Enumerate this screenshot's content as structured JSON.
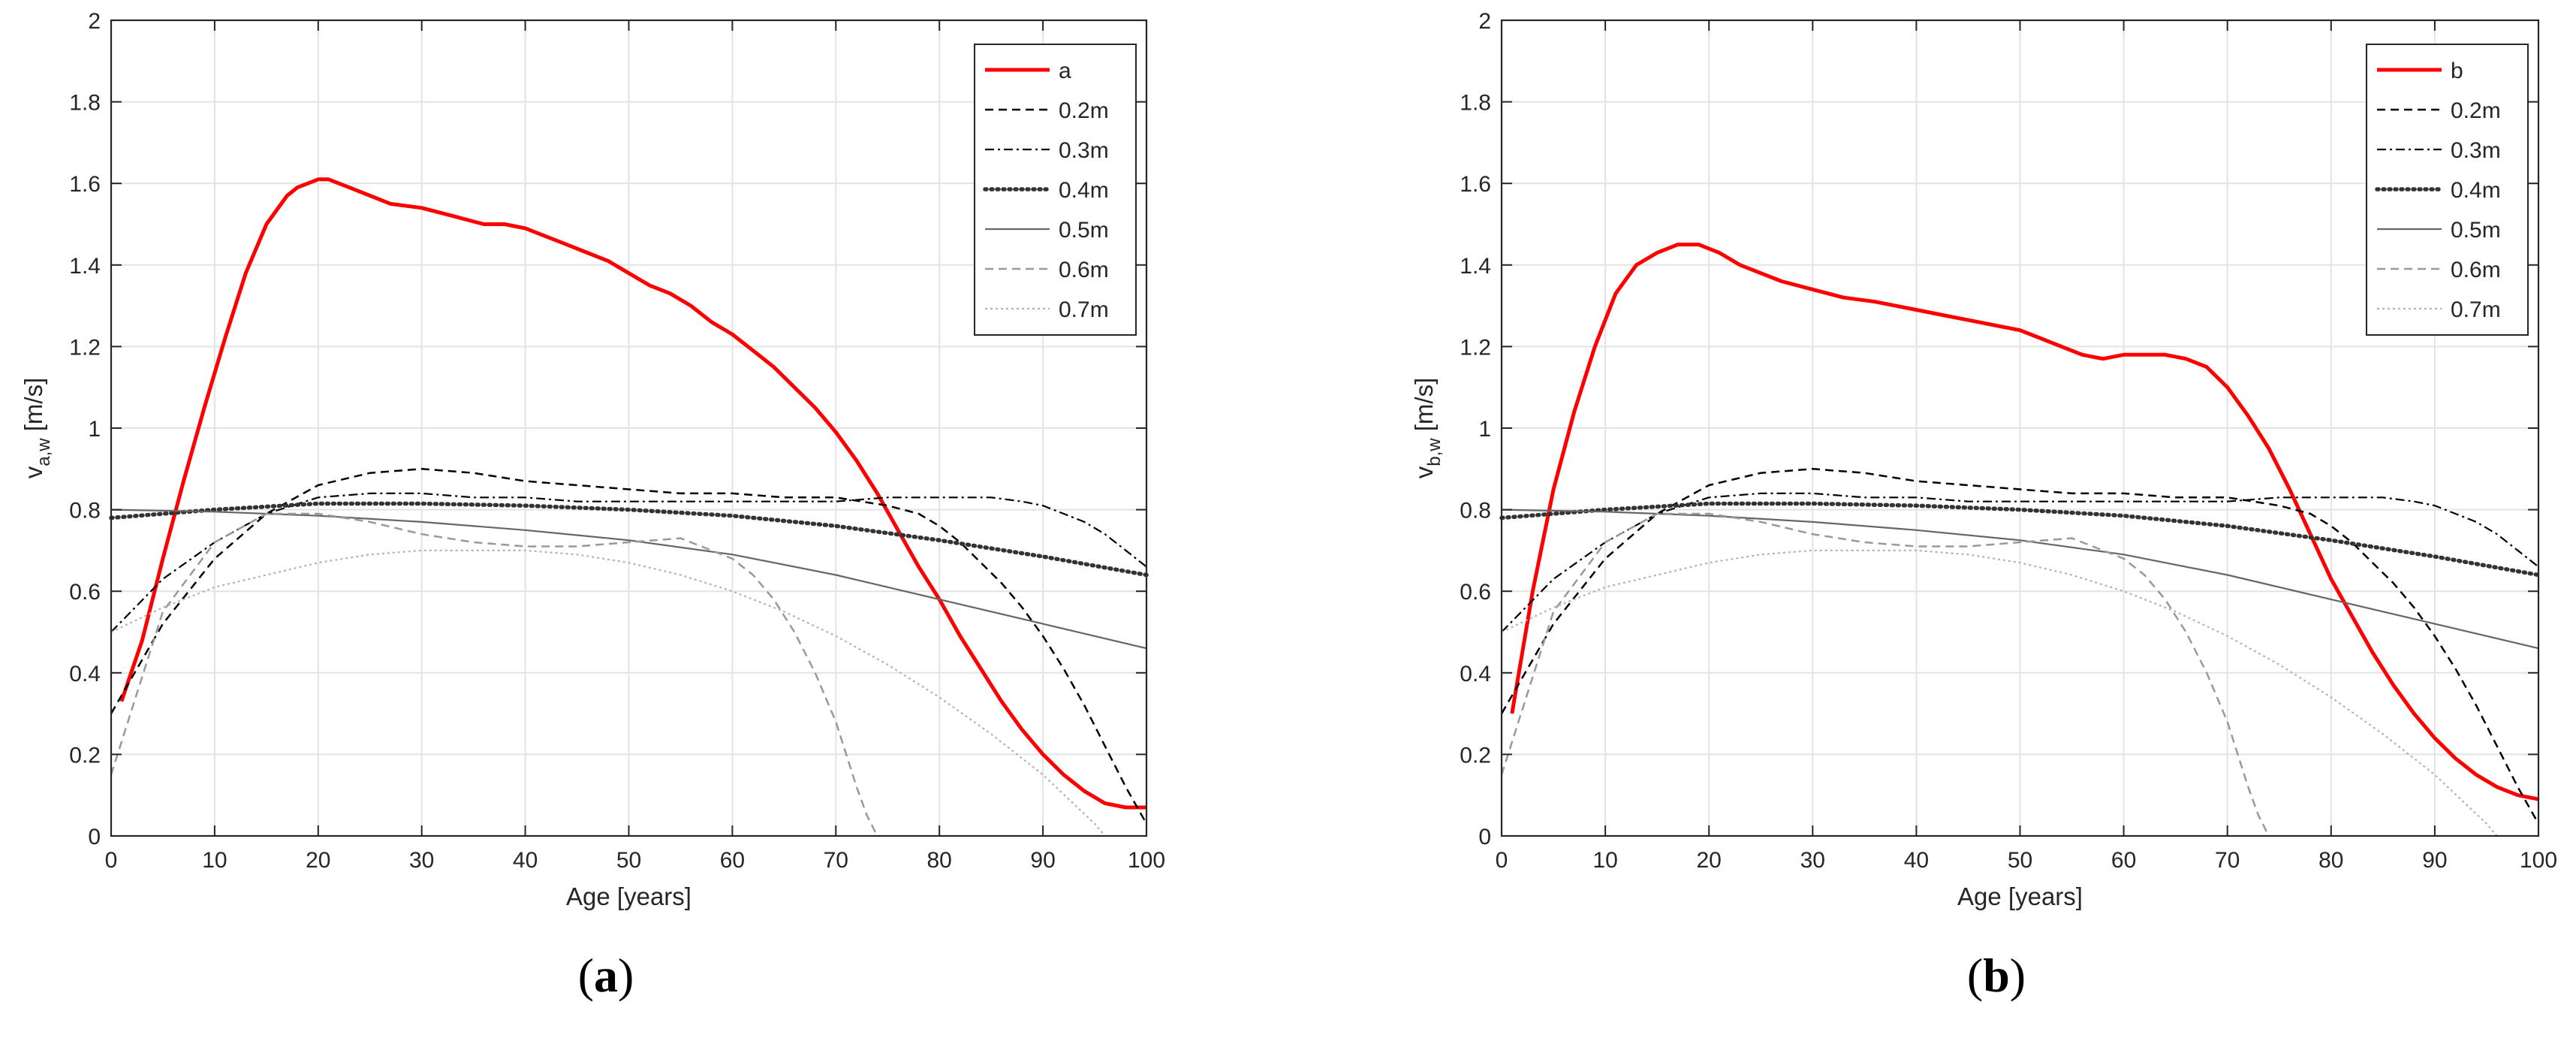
{
  "chart_data": [
    {
      "type": "line",
      "panel_label": "a",
      "xlabel": "Age [years]",
      "ylabel_main": "v",
      "ylabel_sub": "a,w",
      "ylabel_unit": " [m/s]",
      "xlim": [
        0,
        100
      ],
      "ylim": [
        0,
        2
      ],
      "xticks": [
        0,
        10,
        20,
        30,
        40,
        50,
        60,
        70,
        80,
        90,
        100
      ],
      "yticks": [
        0,
        0.2,
        0.4,
        0.6,
        0.8,
        1,
        1.2,
        1.4,
        1.6,
        1.8,
        2
      ],
      "ytick_labels": [
        "0",
        "0.2",
        "0.4",
        "0.6",
        "0.8",
        "1",
        "1.2",
        "1.4",
        "1.6",
        "1.8",
        "2"
      ],
      "grid": true,
      "legend_position": "top-right",
      "series": [
        {
          "name": "a",
          "color": "#ff0000",
          "style": "solid-thick",
          "x": [
            1,
            3,
            5,
            7,
            9,
            11,
            13,
            15,
            17,
            18,
            19,
            20,
            21,
            22,
            23,
            25,
            27,
            30,
            33,
            36,
            38,
            40,
            42,
            44,
            46,
            48,
            50,
            52,
            54,
            56,
            58,
            60,
            62,
            64,
            66,
            68,
            70,
            72,
            74,
            76,
            78,
            80,
            82,
            84,
            86,
            88,
            90,
            92,
            94,
            96,
            98,
            99,
            100
          ],
          "y": [
            0.33,
            0.48,
            0.68,
            0.87,
            1.05,
            1.22,
            1.38,
            1.5,
            1.57,
            1.59,
            1.6,
            1.61,
            1.61,
            1.6,
            1.59,
            1.57,
            1.55,
            1.54,
            1.52,
            1.5,
            1.5,
            1.49,
            1.47,
            1.45,
            1.43,
            1.41,
            1.38,
            1.35,
            1.33,
            1.3,
            1.26,
            1.23,
            1.19,
            1.15,
            1.1,
            1.05,
            0.99,
            0.92,
            0.84,
            0.75,
            0.66,
            0.58,
            0.49,
            0.41,
            0.33,
            0.26,
            0.2,
            0.15,
            0.11,
            0.08,
            0.07,
            0.07,
            0.07
          ]
        },
        {
          "name": "0.2m",
          "color": "#000000",
          "style": "dashed",
          "x": [
            0,
            5,
            10,
            15,
            20,
            25,
            30,
            35,
            40,
            45,
            50,
            55,
            60,
            65,
            70,
            75,
            78,
            80,
            82,
            84,
            86,
            88,
            90,
            92,
            94,
            96,
            98,
            100
          ],
          "y": [
            0.3,
            0.52,
            0.68,
            0.79,
            0.86,
            0.89,
            0.9,
            0.89,
            0.87,
            0.86,
            0.85,
            0.84,
            0.84,
            0.83,
            0.83,
            0.81,
            0.79,
            0.76,
            0.72,
            0.67,
            0.62,
            0.56,
            0.49,
            0.41,
            0.32,
            0.22,
            0.12,
            0.03
          ]
        },
        {
          "name": "0.3m",
          "color": "#000000",
          "style": "dashdot",
          "x": [
            0,
            5,
            10,
            15,
            20,
            25,
            30,
            35,
            40,
            45,
            50,
            55,
            60,
            65,
            70,
            75,
            80,
            85,
            88,
            90,
            92,
            94,
            96,
            98,
            100
          ],
          "y": [
            0.5,
            0.63,
            0.72,
            0.79,
            0.83,
            0.84,
            0.84,
            0.83,
            0.83,
            0.82,
            0.82,
            0.82,
            0.82,
            0.82,
            0.82,
            0.83,
            0.83,
            0.83,
            0.82,
            0.81,
            0.79,
            0.77,
            0.74,
            0.7,
            0.66
          ]
        },
        {
          "name": "0.4m",
          "color": "#333333",
          "style": "dotted-thick",
          "x": [
            0,
            10,
            20,
            30,
            40,
            50,
            60,
            70,
            80,
            90,
            100
          ],
          "y": [
            0.78,
            0.8,
            0.815,
            0.815,
            0.81,
            0.8,
            0.785,
            0.76,
            0.725,
            0.685,
            0.64
          ]
        },
        {
          "name": "0.5m",
          "color": "#666666",
          "style": "solid-thin",
          "x": [
            0,
            10,
            15,
            20,
            30,
            40,
            50,
            60,
            70,
            80,
            90,
            100
          ],
          "y": [
            0.8,
            0.795,
            0.79,
            0.785,
            0.77,
            0.75,
            0.725,
            0.69,
            0.64,
            0.58,
            0.52,
            0.46
          ]
        },
        {
          "name": "0.6m",
          "color": "#999999",
          "style": "dashed",
          "x": [
            0,
            5,
            10,
            15,
            20,
            25,
            30,
            35,
            40,
            45,
            50,
            55,
            60,
            62,
            64,
            66,
            68,
            70,
            71,
            72,
            73,
            74
          ],
          "y": [
            0.15,
            0.55,
            0.72,
            0.79,
            0.79,
            0.77,
            0.74,
            0.72,
            0.71,
            0.71,
            0.72,
            0.73,
            0.68,
            0.64,
            0.58,
            0.5,
            0.4,
            0.28,
            0.2,
            0.12,
            0.05,
            0.0
          ]
        },
        {
          "name": "0.7m",
          "color": "#b3b3b3",
          "style": "dotted-thin",
          "x": [
            0,
            5,
            10,
            15,
            20,
            25,
            30,
            35,
            40,
            45,
            50,
            55,
            60,
            65,
            70,
            75,
            80,
            85,
            90,
            95,
            96
          ],
          "y": [
            0.5,
            0.56,
            0.61,
            0.64,
            0.67,
            0.69,
            0.7,
            0.7,
            0.7,
            0.69,
            0.67,
            0.64,
            0.6,
            0.55,
            0.49,
            0.42,
            0.34,
            0.25,
            0.15,
            0.03,
            0.0
          ]
        }
      ]
    },
    {
      "type": "line",
      "panel_label": "b",
      "xlabel": "Age [years]",
      "ylabel_main": "v",
      "ylabel_sub": "b,w",
      "ylabel_unit": " [m/s]",
      "xlim": [
        0,
        100
      ],
      "ylim": [
        0,
        2
      ],
      "xticks": [
        0,
        10,
        20,
        30,
        40,
        50,
        60,
        70,
        80,
        90,
        100
      ],
      "yticks": [
        0,
        0.2,
        0.4,
        0.6,
        0.8,
        1,
        1.2,
        1.4,
        1.6,
        1.8,
        2
      ],
      "ytick_labels": [
        "0",
        "0.2",
        "0.4",
        "0.6",
        "0.8",
        "1",
        "1.2",
        "1.4",
        "1.6",
        "1.8",
        "2"
      ],
      "grid": true,
      "legend_position": "top-right",
      "series": [
        {
          "name": "b",
          "color": "#ff0000",
          "style": "solid-thick",
          "x": [
            1,
            3,
            5,
            7,
            9,
            11,
            13,
            15,
            17,
            18,
            19,
            20,
            21,
            23,
            25,
            27,
            30,
            33,
            36,
            38,
            40,
            42,
            44,
            46,
            48,
            50,
            52,
            54,
            56,
            58,
            60,
            62,
            64,
            66,
            68,
            70,
            72,
            74,
            76,
            78,
            80,
            82,
            84,
            86,
            88,
            90,
            92,
            94,
            96,
            98,
            100
          ],
          "y": [
            0.3,
            0.6,
            0.85,
            1.04,
            1.2,
            1.33,
            1.4,
            1.43,
            1.45,
            1.45,
            1.45,
            1.44,
            1.43,
            1.4,
            1.38,
            1.36,
            1.34,
            1.32,
            1.31,
            1.3,
            1.29,
            1.28,
            1.27,
            1.26,
            1.25,
            1.24,
            1.22,
            1.2,
            1.18,
            1.17,
            1.18,
            1.18,
            1.18,
            1.17,
            1.15,
            1.1,
            1.03,
            0.95,
            0.85,
            0.74,
            0.63,
            0.54,
            0.45,
            0.37,
            0.3,
            0.24,
            0.19,
            0.15,
            0.12,
            0.1,
            0.09
          ]
        },
        {
          "name": "0.2m",
          "color": "#000000",
          "style": "dashed",
          "x": [
            0,
            5,
            10,
            15,
            20,
            25,
            30,
            35,
            40,
            45,
            50,
            55,
            60,
            65,
            70,
            75,
            78,
            80,
            82,
            84,
            86,
            88,
            90,
            92,
            94,
            96,
            98,
            100
          ],
          "y": [
            0.3,
            0.52,
            0.68,
            0.79,
            0.86,
            0.89,
            0.9,
            0.89,
            0.87,
            0.86,
            0.85,
            0.84,
            0.84,
            0.83,
            0.83,
            0.81,
            0.79,
            0.76,
            0.72,
            0.67,
            0.62,
            0.56,
            0.49,
            0.41,
            0.32,
            0.22,
            0.12,
            0.03
          ]
        },
        {
          "name": "0.3m",
          "color": "#000000",
          "style": "dashdot",
          "x": [
            0,
            5,
            10,
            15,
            20,
            25,
            30,
            35,
            40,
            45,
            50,
            55,
            60,
            65,
            70,
            75,
            80,
            85,
            88,
            90,
            92,
            94,
            96,
            98,
            100
          ],
          "y": [
            0.5,
            0.63,
            0.72,
            0.79,
            0.83,
            0.84,
            0.84,
            0.83,
            0.83,
            0.82,
            0.82,
            0.82,
            0.82,
            0.82,
            0.82,
            0.83,
            0.83,
            0.83,
            0.82,
            0.81,
            0.79,
            0.77,
            0.74,
            0.7,
            0.66
          ]
        },
        {
          "name": "0.4m",
          "color": "#333333",
          "style": "dotted-thick",
          "x": [
            0,
            10,
            20,
            30,
            40,
            50,
            60,
            70,
            80,
            90,
            100
          ],
          "y": [
            0.78,
            0.8,
            0.815,
            0.815,
            0.81,
            0.8,
            0.785,
            0.76,
            0.725,
            0.685,
            0.64
          ]
        },
        {
          "name": "0.5m",
          "color": "#666666",
          "style": "solid-thin",
          "x": [
            0,
            10,
            15,
            20,
            30,
            40,
            50,
            60,
            70,
            80,
            90,
            100
          ],
          "y": [
            0.8,
            0.795,
            0.79,
            0.785,
            0.77,
            0.75,
            0.725,
            0.69,
            0.64,
            0.58,
            0.52,
            0.46
          ]
        },
        {
          "name": "0.6m",
          "color": "#999999",
          "style": "dashed",
          "x": [
            0,
            5,
            10,
            15,
            20,
            25,
            30,
            35,
            40,
            45,
            50,
            55,
            60,
            62,
            64,
            66,
            68,
            70,
            71,
            72,
            73,
            74
          ],
          "y": [
            0.15,
            0.55,
            0.72,
            0.79,
            0.79,
            0.77,
            0.74,
            0.72,
            0.71,
            0.71,
            0.72,
            0.73,
            0.68,
            0.64,
            0.58,
            0.5,
            0.4,
            0.28,
            0.2,
            0.12,
            0.05,
            0.0
          ]
        },
        {
          "name": "0.7m",
          "color": "#b3b3b3",
          "style": "dotted-thin",
          "x": [
            0,
            5,
            10,
            15,
            20,
            25,
            30,
            35,
            40,
            45,
            50,
            55,
            60,
            65,
            70,
            75,
            80,
            85,
            90,
            95,
            96
          ],
          "y": [
            0.5,
            0.56,
            0.61,
            0.64,
            0.67,
            0.69,
            0.7,
            0.7,
            0.7,
            0.69,
            0.67,
            0.64,
            0.6,
            0.55,
            0.49,
            0.42,
            0.34,
            0.25,
            0.15,
            0.03,
            0.0
          ]
        }
      ]
    }
  ],
  "captions": {
    "a": {
      "open": "(",
      "letter": "a",
      "close": ")"
    },
    "b": {
      "open": "(",
      "letter": "b",
      "close": ")"
    }
  }
}
